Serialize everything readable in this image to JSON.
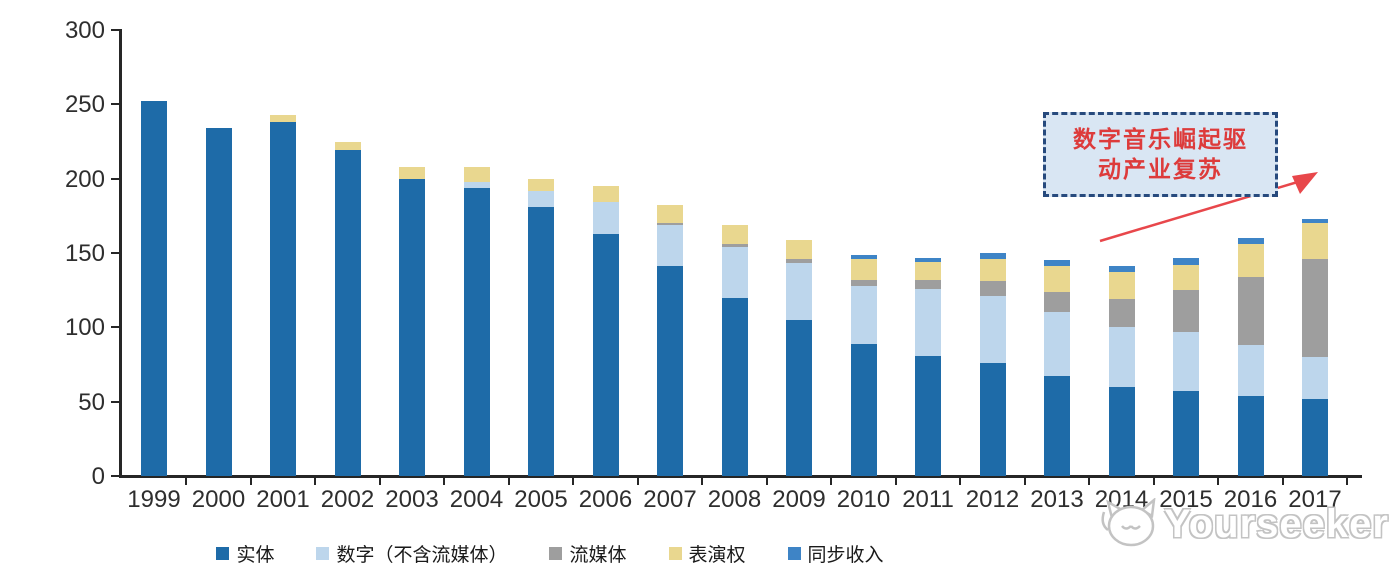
{
  "chart_data": {
    "type": "bar",
    "stacked": true,
    "title": "",
    "xlabel": "",
    "ylabel": "",
    "ylim": [
      0,
      300
    ],
    "yticks": [
      0,
      50,
      100,
      150,
      200,
      250,
      300
    ],
    "grid": false,
    "legend_position": "bottom",
    "categories": [
      "1999",
      "2000",
      "2001",
      "2002",
      "2003",
      "2004",
      "2005",
      "2006",
      "2007",
      "2008",
      "2009",
      "2010",
      "2011",
      "2012",
      "2013",
      "2014",
      "2015",
      "2016",
      "2017"
    ],
    "series": [
      {
        "name": "实体",
        "color": "#1e6ba8",
        "values": [
          252,
          234,
          238,
          219,
          200,
          194,
          181,
          163,
          141,
          120,
          105,
          89,
          81,
          76,
          67,
          60,
          57,
          54,
          52
        ]
      },
      {
        "name": "数字（不含流媒体）",
        "color": "#bdd6ec",
        "values": [
          0,
          0,
          0,
          0,
          0,
          4,
          11,
          21,
          28,
          34,
          38,
          39,
          45,
          45,
          43,
          40,
          40,
          34,
          28
        ]
      },
      {
        "name": "流媒体",
        "color": "#9e9e9e",
        "values": [
          0,
          0,
          0,
          0,
          0,
          0,
          0,
          0,
          1,
          2,
          3,
          4,
          6,
          10,
          14,
          19,
          28,
          46,
          66
        ]
      },
      {
        "name": "表演权",
        "color": "#e9d78f",
        "values": [
          0,
          0,
          5,
          6,
          8,
          10,
          8,
          11,
          12,
          13,
          13,
          14,
          12,
          15,
          17,
          18,
          17,
          22,
          24
        ]
      },
      {
        "name": "同步收入",
        "color": "#3e84c6",
        "values": [
          0,
          0,
          0,
          0,
          0,
          0,
          0,
          0,
          0,
          0,
          0,
          3,
          3,
          4,
          4,
          4,
          5,
          4,
          3
        ]
      }
    ],
    "totals": [
      252,
      234,
      243,
      225,
      208,
      208,
      200,
      195,
      182,
      169,
      159,
      149,
      147,
      150,
      145,
      141,
      147,
      160,
      173
    ]
  },
  "annotation": {
    "lines": [
      "数字音乐崛起驱",
      "动产业复苏"
    ],
    "text_color": "#dd3b3b",
    "box_fill": "#d9e6f3",
    "box_border": "#274a7d",
    "arrow_color": "#e8474b"
  },
  "watermark": {
    "text": "Yourseeker",
    "icon": "cat-logo",
    "color": "#c3c3c3"
  },
  "axis": {
    "color": "#262626",
    "label_color": "#2e2e2e"
  }
}
